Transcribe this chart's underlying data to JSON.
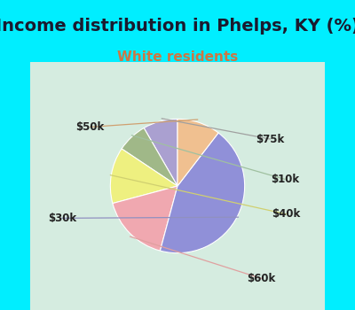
{
  "title": "Income distribution in Phelps, KY (%)",
  "subtitle": "White residents",
  "bg_color": "#00EEFF",
  "chart_bg_top": "#e8f5e8",
  "chart_bg_bottom": "#c8e8d8",
  "title_fontsize": 14,
  "subtitle_fontsize": 11,
  "subtitle_color": "#cc7744",
  "title_color": "#1a1a2e",
  "label_fontsize": 8.5,
  "labels": [
    "$75k",
    "$10k",
    "$40k",
    "$60k",
    "$30k",
    "$50k"
  ],
  "sizes": [
    8,
    7,
    13,
    16,
    42,
    10
  ],
  "colors": [
    "#aaa0d0",
    "#a0b888",
    "#eef080",
    "#f0a8b0",
    "#9090d8",
    "#f0c090"
  ],
  "startangle": 90,
  "wedge_edge_color": "white",
  "wedge_lw": 0.8
}
